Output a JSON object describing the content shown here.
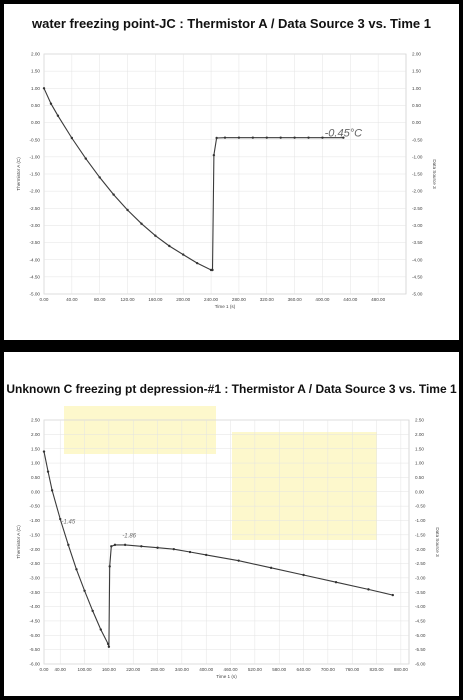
{
  "chart_data": [
    {
      "type": "scatter",
      "title": "water freezing point-JC : Thermistor A / Data Source 3 vs. Time 1",
      "xlabel": "Time 1 (s)",
      "ylabel": "Thermistor A (C)",
      "ylabel2": "Data Source 3",
      "xlim": [
        0,
        520
      ],
      "ylim": [
        -5.0,
        2.0
      ],
      "x_ticks": [
        "0.00",
        "40.00",
        "80.00",
        "120.00",
        "160.00",
        "200.00",
        "240.00",
        "280.00",
        "320.00",
        "360.00",
        "400.00",
        "440.00",
        "480.00"
      ],
      "y_ticks": [
        "2.00",
        "1.50",
        "1.00",
        "0.50",
        "0.00",
        "-0.50",
        "-1.00",
        "-1.50",
        "-2.00",
        "-2.50",
        "-3.00",
        "-3.50",
        "-4.00",
        "-4.50",
        "-5.00"
      ],
      "grid": true,
      "series": [
        {
          "x": [
            0,
            10,
            20,
            40,
            60,
            80,
            100,
            120,
            140,
            160,
            180,
            200,
            220,
            240,
            242,
            244,
            248,
            260,
            280,
            300,
            320,
            340,
            360,
            380,
            400,
            430
          ],
          "y": [
            1.0,
            0.55,
            0.2,
            -0.45,
            -1.05,
            -1.6,
            -2.1,
            -2.55,
            -2.95,
            -3.3,
            -3.6,
            -3.85,
            -4.1,
            -4.3,
            -4.3,
            -0.95,
            -0.45,
            -0.44,
            -0.44,
            -0.44,
            -0.44,
            -0.44,
            -0.44,
            -0.44,
            -0.44,
            -0.44
          ]
        }
      ],
      "annotations": [
        {
          "text": "-0.45°C",
          "x": 430,
          "y": -0.4
        }
      ]
    },
    {
      "type": "scatter",
      "title": "Unknown C freezing pt depression-#1 : Thermistor A / Data Source 3 vs. Time 1",
      "xlabel": "Time 1 (s)",
      "ylabel": "Thermistor A (C)",
      "ylabel2": "Data Source 3",
      "xlim": [
        0,
        900
      ],
      "ylim": [
        -6.0,
        2.5
      ],
      "x_ticks": [
        "0.00",
        "40.00",
        "100.00",
        "160.00",
        "220.00",
        "280.00",
        "340.00",
        "400.00",
        "460.00",
        "520.00",
        "580.00",
        "640.00",
        "700.00",
        "760.00",
        "820.00",
        "880.00"
      ],
      "y_ticks": [
        "2.50",
        "2.00",
        "1.50",
        "1.00",
        "0.50",
        "0.00",
        "-0.50",
        "-1.00",
        "-1.50",
        "-2.00",
        "-2.50",
        "-3.00",
        "-3.50",
        "-4.00",
        "-4.50",
        "-5.00",
        "-5.50",
        "-6.00"
      ],
      "grid": true,
      "series": [
        {
          "x": [
            0,
            10,
            20,
            40,
            60,
            80,
            100,
            120,
            140,
            158,
            160,
            162,
            166,
            175,
            200,
            240,
            280,
            320,
            360,
            400,
            480,
            560,
            640,
            720,
            800,
            860
          ],
          "y": [
            1.4,
            0.7,
            0.05,
            -0.95,
            -1.85,
            -2.7,
            -3.45,
            -4.15,
            -4.8,
            -5.3,
            -5.4,
            -2.6,
            -1.9,
            -1.85,
            -1.85,
            -1.9,
            -1.95,
            -2.0,
            -2.1,
            -2.2,
            -2.4,
            -2.65,
            -2.9,
            -3.15,
            -3.4,
            -3.6
          ]
        }
      ],
      "annotations": [
        {
          "text": "-1.45",
          "x": 60,
          "y": -1.1
        },
        {
          "text": "-1.86",
          "x": 210,
          "y": -1.6
        }
      ]
    }
  ]
}
